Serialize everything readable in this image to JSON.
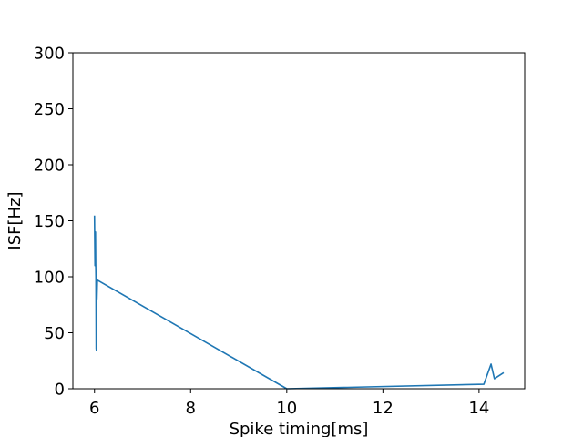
{
  "chart_data": {
    "type": "line",
    "title": "",
    "xlabel": "Spike timing[ms]",
    "ylabel": "ISF[Hz]",
    "xlim": [
      5.55,
      14.95
    ],
    "ylim": [
      0,
      300
    ],
    "xticks": [
      6,
      8,
      10,
      12,
      14
    ],
    "yticks": [
      0,
      50,
      100,
      150,
      200,
      250,
      300
    ],
    "grid": false,
    "line_color": "#1f77b4",
    "series": [
      {
        "x": [
          6.0,
          6.01,
          6.02,
          6.025,
          6.03,
          6.035,
          6.04,
          6.045,
          6.05,
          6.06,
          10.0,
          14.1,
          14.25,
          14.32,
          14.5
        ],
        "y": [
          154,
          110,
          140,
          112,
          98,
          36,
          34,
          95,
          80,
          97,
          0,
          4,
          22,
          9,
          14
        ]
      }
    ]
  }
}
